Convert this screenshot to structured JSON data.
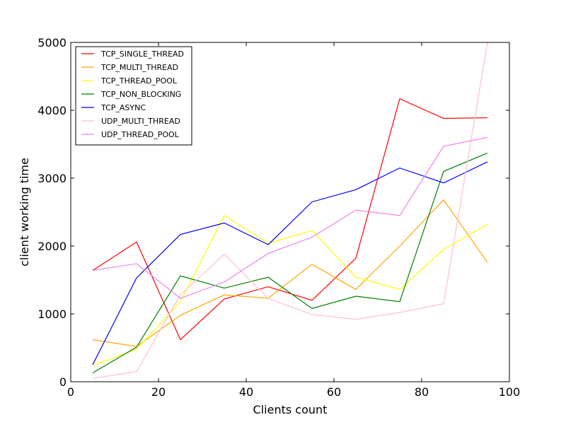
{
  "chart_data": {
    "type": "line",
    "title": "",
    "xlabel": "Clients count",
    "ylabel": "client working time",
    "xlim": [
      0,
      100
    ],
    "ylim": [
      0,
      5000
    ],
    "xticks": [
      0,
      20,
      40,
      60,
      80,
      100
    ],
    "yticks": [
      0,
      1000,
      2000,
      3000,
      4000,
      5000
    ],
    "grid": false,
    "legend_position": "upper-left",
    "x": [
      5,
      15,
      25,
      35,
      45,
      55,
      65,
      75,
      85,
      95
    ],
    "series": [
      {
        "name": "TCP_SINGLE_THREAD",
        "color": "#ff0000",
        "values": [
          1640,
          2060,
          620,
          1220,
          1400,
          1200,
          1820,
          4170,
          3880,
          3890
        ]
      },
      {
        "name": "TCP_MULTI_THREAD",
        "color": "#ffa500",
        "values": [
          620,
          520,
          980,
          1280,
          1230,
          1730,
          1360,
          2000,
          2680,
          1760
        ]
      },
      {
        "name": "TCP_THREAD_POOL",
        "color": "#ffff00",
        "values": [
          240,
          480,
          1180,
          2450,
          2040,
          2230,
          1540,
          1360,
          1950,
          2320
        ]
      },
      {
        "name": "TCP_NON_BLOCKING",
        "color": "#008000",
        "values": [
          130,
          510,
          1560,
          1380,
          1540,
          1080,
          1260,
          1180,
          3100,
          3370
        ]
      },
      {
        "name": "TCP_ASYNC",
        "color": "#0000ff",
        "values": [
          250,
          1530,
          2170,
          2340,
          2020,
          2650,
          2830,
          3150,
          2930,
          3240
        ]
      },
      {
        "name": "UDP_MULTI_THREAD",
        "color": "#ffc0cb",
        "values": [
          50,
          150,
          1280,
          1880,
          1230,
          990,
          920,
          1020,
          1150,
          5000
        ]
      },
      {
        "name": "UDP_THREAD_POOL",
        "color": "#ee82ee",
        "values": [
          1640,
          1740,
          1230,
          1470,
          1890,
          2130,
          2530,
          2450,
          3470,
          3600
        ]
      }
    ]
  }
}
